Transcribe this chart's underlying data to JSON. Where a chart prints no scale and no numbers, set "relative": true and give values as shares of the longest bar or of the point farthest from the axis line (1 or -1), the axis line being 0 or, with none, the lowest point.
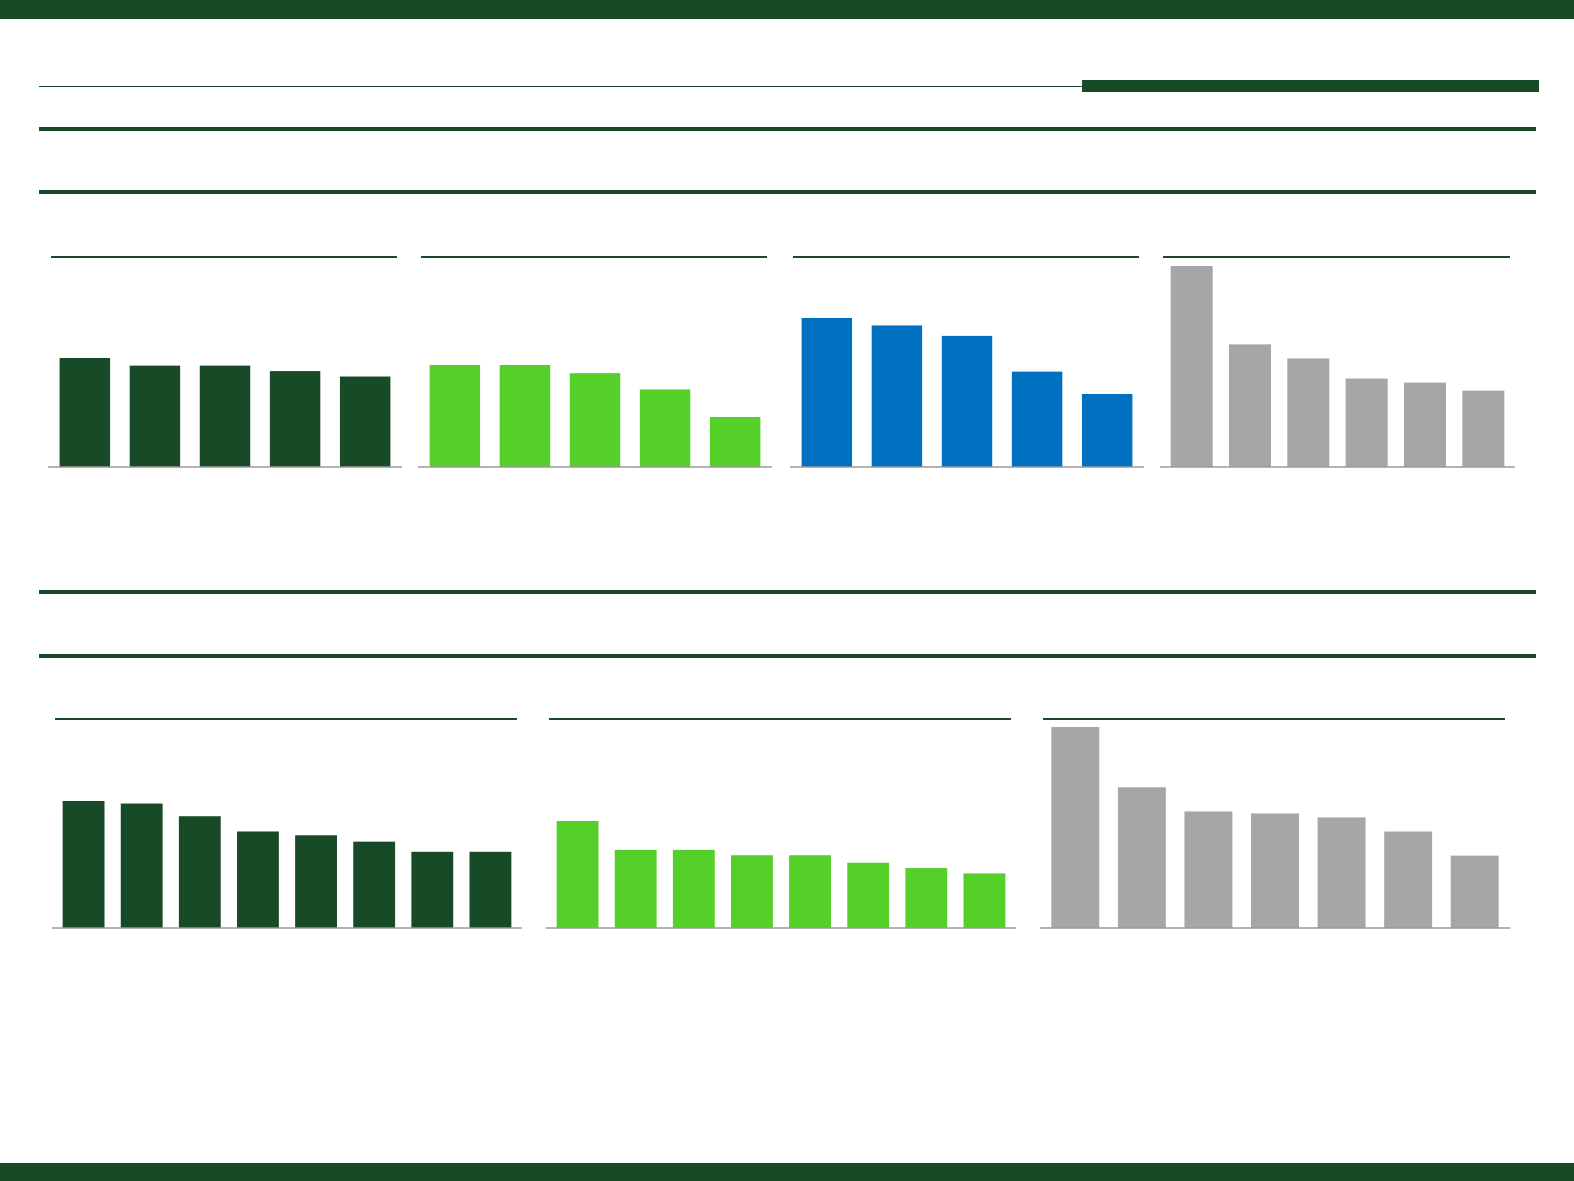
{
  "chart_data": [
    {
      "type": "bar",
      "relative": true,
      "categories": [
        null,
        null,
        null,
        null,
        null
      ],
      "series": [
        {
          "color": "#184a27",
          "values": [
            1,
            0.93,
            0.93,
            0.88,
            0.83
          ]
        }
      ]
    },
    {
      "type": "bar",
      "relative": true,
      "categories": [
        null,
        null,
        null,
        null,
        null
      ],
      "series": [
        {
          "color": "#55cf2a",
          "values": [
            1,
            1,
            0.92,
            0.76,
            0.49
          ]
        }
      ]
    },
    {
      "type": "bar",
      "relative": true,
      "categories": [
        null,
        null,
        null,
        null,
        null
      ],
      "series": [
        {
          "color": "#0070c0",
          "values": [
            1,
            0.95,
            0.88,
            0.64,
            0.49
          ]
        }
      ]
    },
    {
      "type": "bar",
      "relative": true,
      "categories": [
        null,
        null,
        null,
        null,
        null,
        null
      ],
      "series": [
        {
          "color": "#a6a6a6",
          "values": [
            1,
            0.61,
            0.54,
            0.44,
            0.42,
            0.38
          ]
        }
      ]
    },
    {
      "type": "bar",
      "relative": true,
      "categories": [
        null,
        null,
        null,
        null,
        null,
        null,
        null,
        null
      ],
      "series": [
        {
          "color": "#184a27",
          "values": [
            1,
            0.98,
            0.88,
            0.76,
            0.73,
            0.68,
            0.6,
            0.6
          ]
        }
      ]
    },
    {
      "type": "bar",
      "relative": true,
      "categories": [
        null,
        null,
        null,
        null,
        null,
        null,
        null,
        null
      ],
      "series": [
        {
          "color": "#55cf2a",
          "values": [
            1,
            0.73,
            0.73,
            0.68,
            0.68,
            0.61,
            0.56,
            0.51
          ]
        }
      ]
    },
    {
      "type": "bar",
      "relative": true,
      "categories": [
        null,
        null,
        null,
        null,
        null,
        null,
        null
      ],
      "series": [
        {
          "color": "#a6a6a6",
          "values": [
            1,
            0.7,
            0.58,
            0.57,
            0.55,
            0.48,
            0.36
          ]
        }
      ]
    }
  ]
}
